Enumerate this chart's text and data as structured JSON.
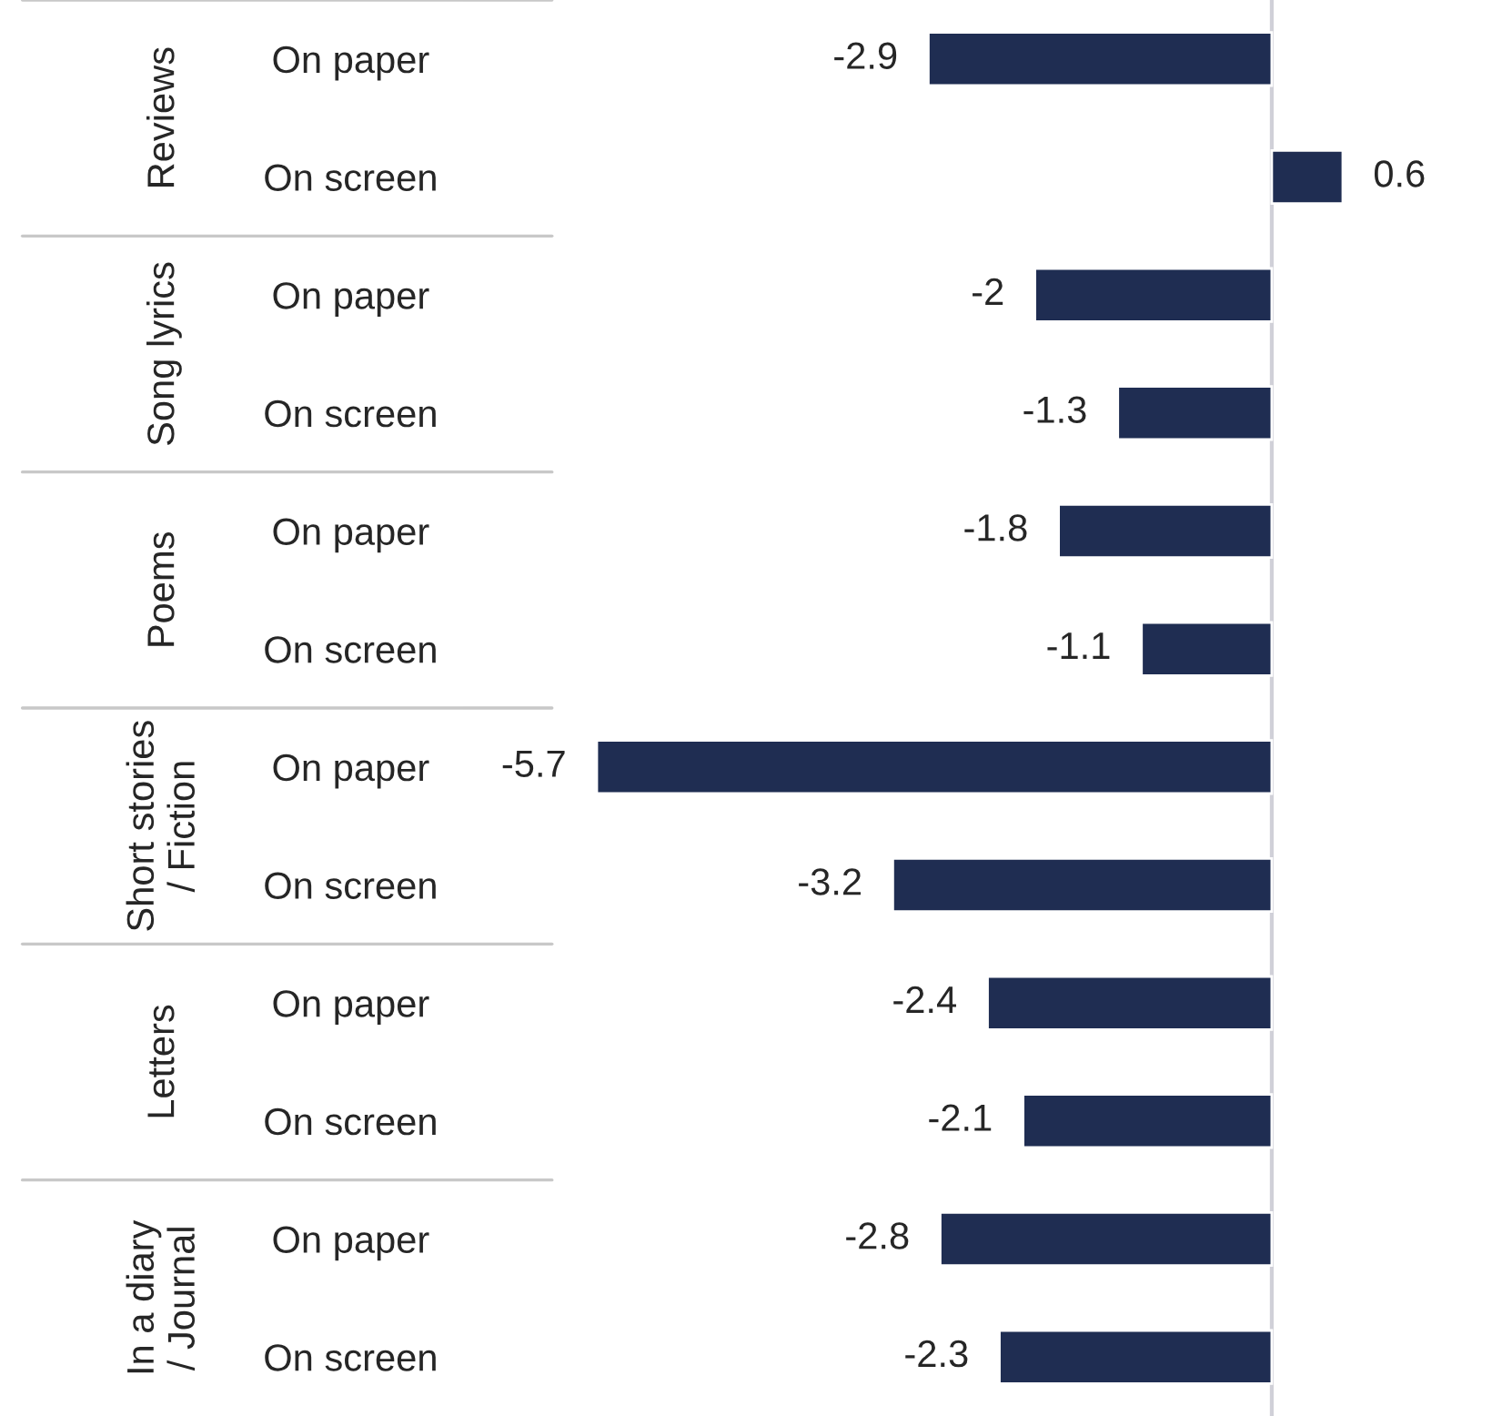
{
  "chart_data": {
    "type": "bar",
    "orientation": "horizontal",
    "categories": [
      "On paper",
      "On screen",
      "On paper",
      "On screen",
      "On paper",
      "On screen",
      "On paper",
      "On screen",
      "On paper",
      "On screen",
      "On paper",
      "On screen"
    ],
    "values": [
      -2.9,
      0.6,
      -2,
      -1.3,
      -1.8,
      -1.1,
      -5.7,
      -3.2,
      -2.4,
      -2.1,
      -2.8,
      -2.3
    ],
    "color": "#1f2d52",
    "data_labels": true,
    "tick_labels": "y",
    "grid": false,
    "annotations": [
      "Reviews",
      "Song lyrics",
      "Poems",
      "Short stories / Fiction",
      "Letters",
      "In a diary / Journal"
    ]
  }
}
